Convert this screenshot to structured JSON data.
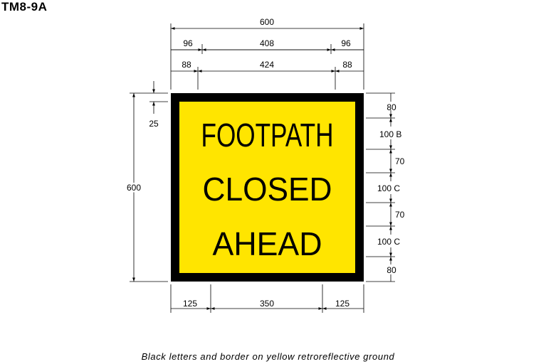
{
  "sign_code": "TM8-9A",
  "caption": "Black letters and border on yellow retroreflective ground",
  "colors": {
    "ground": "#FFE500",
    "legend": "#000000",
    "border": "#000000"
  },
  "legend_lines": [
    "FOOTPATH",
    "CLOSED",
    "AHEAD"
  ],
  "dimensions": {
    "overall_width": "600",
    "row_96": {
      "left": "96",
      "middle": "408",
      "right": "96"
    },
    "row_88": {
      "left": "88",
      "middle": "424",
      "right": "88"
    },
    "overall_height": "600",
    "border_inset": "25",
    "right_stack": [
      "80",
      "100 B",
      "70",
      "100 C",
      "70",
      "100 C",
      "80"
    ],
    "bottom_row": {
      "left": "125",
      "middle": "350",
      "right": "125"
    }
  }
}
